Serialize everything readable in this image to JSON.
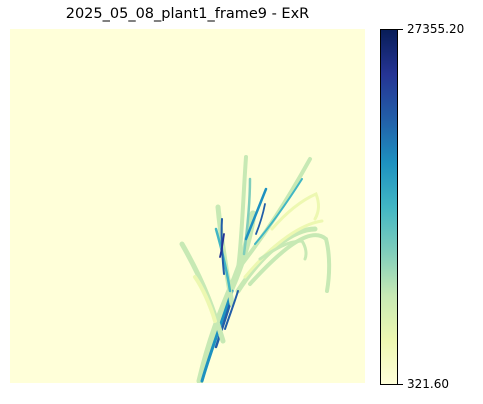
{
  "figure": {
    "title": "2025_05_08_plant1_frame9 - ExR"
  },
  "image": {
    "subject": "plant",
    "background_color": "#ffffd9"
  },
  "colorbar": {
    "max_label": "27355.20",
    "min_label": "321.60",
    "colormap": "YlGnBu",
    "colors": [
      "#ffffd9",
      "#edf8b1",
      "#c7e9b4",
      "#7fcdbb",
      "#41b6c4",
      "#1d91c0",
      "#225ea8",
      "#253494",
      "#081d58"
    ]
  }
}
